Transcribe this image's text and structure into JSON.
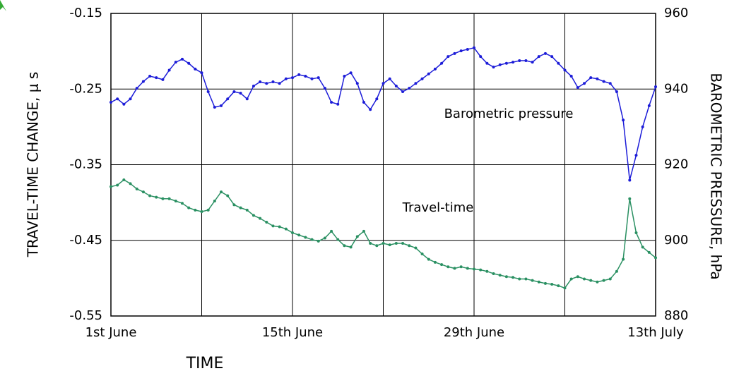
{
  "chart_data": {
    "type": "line",
    "x_label": "TIME",
    "y_label": "TRAVEL-TIME CHANGE, μ s",
    "y2_label": "BAROMETRIC PRESSURE, hPa",
    "annotations": [
      "Barometric pressure",
      "Travel-time"
    ],
    "xlim": [
      0,
      42
    ],
    "xticks": [
      {
        "value": 0,
        "label": "1st June"
      },
      {
        "value": 7,
        "label": null
      },
      {
        "value": 14,
        "label": "15th June"
      },
      {
        "value": 21,
        "label": null
      },
      {
        "value": 28,
        "label": "29th June"
      },
      {
        "value": 35,
        "label": null
      },
      {
        "value": 42,
        "label": "13th July"
      }
    ],
    "ylim": [
      -0.55,
      -0.15
    ],
    "yticks": [
      -0.55,
      -0.45,
      -0.35,
      -0.25,
      -0.15
    ],
    "y2lim": [
      880,
      960
    ],
    "y2ticks": [
      880,
      900,
      920,
      940,
      960
    ],
    "grid": true,
    "x": [
      0,
      0.5,
      1,
      1.5,
      2,
      2.5,
      3,
      3.5,
      4,
      4.5,
      5,
      5.5,
      6,
      6.5,
      7,
      7.5,
      8,
      8.5,
      9,
      9.5,
      10,
      10.5,
      11,
      11.5,
      12,
      12.5,
      13,
      13.5,
      14,
      14.5,
      15,
      15.5,
      16,
      16.5,
      17,
      17.5,
      18,
      18.5,
      19,
      19.5,
      20,
      20.5,
      21,
      21.5,
      22,
      22.5,
      23,
      23.5,
      24,
      24.5,
      25,
      25.5,
      26,
      26.5,
      27,
      27.5,
      28,
      28.5,
      29,
      29.5,
      30,
      30.5,
      31,
      31.5,
      32,
      32.5,
      33,
      33.5,
      34,
      34.5,
      35,
      35.5,
      36,
      36.5,
      37,
      37.5,
      38,
      38.5,
      39,
      39.5,
      40,
      40.5,
      41,
      41.5,
      42
    ],
    "series": [
      {
        "name": "Barometric pressure",
        "color": "#1c1cd8",
        "axis": "y2",
        "values": [
          936.5,
          937.4,
          936,
          937.4,
          940.2,
          942,
          943.4,
          943,
          942.5,
          945,
          947.1,
          947.9,
          946.8,
          945.3,
          944.3,
          939.3,
          935.2,
          935.6,
          937.4,
          939.3,
          938.9,
          937.4,
          940.8,
          941.9,
          941.5,
          941.9,
          941.5,
          942.7,
          943,
          943.8,
          943.4,
          942.7,
          943,
          940.2,
          936.5,
          936,
          943.4,
          944.3,
          941.5,
          936.5,
          934.6,
          937.4,
          941.5,
          942.7,
          940.8,
          939.3,
          940.2,
          941.5,
          942.7,
          944,
          945.3,
          946.8,
          948.6,
          949.4,
          950.1,
          950.5,
          950.9,
          948.6,
          946.8,
          945.8,
          946.4,
          946.8,
          947.1,
          947.5,
          947.5,
          947.1,
          948.6,
          949.4,
          948.6,
          946.8,
          945,
          943.4,
          940.4,
          941.5,
          943,
          942.7,
          942,
          941.5,
          939.3,
          931.8,
          915.9,
          922.5,
          930,
          935.6,
          940.6
        ]
      },
      {
        "name": "Travel-time",
        "color": "#2a9062",
        "axis": "y",
        "values": [
          -0.379,
          -0.377,
          -0.37,
          -0.375,
          -0.382,
          -0.386,
          -0.391,
          -0.393,
          -0.395,
          -0.395,
          -0.398,
          -0.401,
          -0.407,
          -0.41,
          -0.412,
          -0.41,
          -0.398,
          -0.386,
          -0.391,
          -0.403,
          -0.407,
          -0.41,
          -0.417,
          -0.421,
          -0.426,
          -0.431,
          -0.432,
          -0.435,
          -0.44,
          -0.443,
          -0.446,
          -0.449,
          -0.451,
          -0.447,
          -0.438,
          -0.449,
          -0.457,
          -0.459,
          -0.445,
          -0.438,
          -0.454,
          -0.457,
          -0.454,
          -0.456,
          -0.454,
          -0.454,
          -0.457,
          -0.46,
          -0.468,
          -0.475,
          -0.479,
          -0.482,
          -0.485,
          -0.487,
          -0.485,
          -0.487,
          -0.488,
          -0.489,
          -0.491,
          -0.494,
          -0.496,
          -0.498,
          -0.499,
          -0.501,
          -0.501,
          -0.503,
          -0.505,
          -0.507,
          -0.508,
          -0.51,
          -0.513,
          -0.501,
          -0.498,
          -0.501,
          -0.503,
          -0.505,
          -0.503,
          -0.501,
          -0.491,
          -0.475,
          -0.395,
          -0.44,
          -0.459,
          -0.466,
          -0.473
        ]
      }
    ]
  }
}
